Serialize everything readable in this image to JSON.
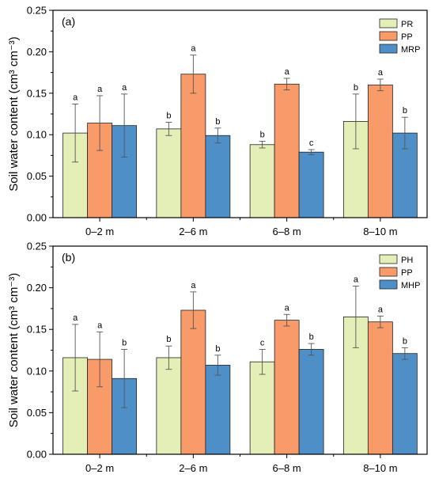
{
  "chart_data": [
    {
      "type": "bar",
      "panel_label": "(a)",
      "ylabel": "Soil water content (cm³ cm⁻³)",
      "ylim": [
        0,
        0.25
      ],
      "yticks": [
        "0.00",
        "0.05",
        "0.10",
        "0.15",
        "0.20",
        "0.25"
      ],
      "categories": [
        "0–2 m",
        "2–6 m",
        "6–8 m",
        "8–10 m"
      ],
      "series": [
        {
          "name": "PR",
          "color": "#e3efb6",
          "values": [
            0.102,
            0.107,
            0.088,
            0.116
          ],
          "errors": [
            0.035,
            0.008,
            0.004,
            0.033
          ],
          "letters": [
            "a",
            "b",
            "b",
            "b"
          ]
        },
        {
          "name": "PP",
          "color": "#f99a69",
          "values": [
            0.114,
            0.173,
            0.161,
            0.16
          ],
          "errors": [
            0.033,
            0.023,
            0.007,
            0.007
          ],
          "letters": [
            "a",
            "a",
            "a",
            "a"
          ]
        },
        {
          "name": "MRP",
          "color": "#4f8fc8",
          "values": [
            0.111,
            0.099,
            0.079,
            0.102
          ],
          "errors": [
            0.038,
            0.009,
            0.003,
            0.019
          ],
          "letters": [
            "a",
            "b",
            "c",
            "b"
          ]
        }
      ],
      "legend_position": "top-right"
    },
    {
      "type": "bar",
      "panel_label": "(b)",
      "ylabel": "Soil water content (cm³ cm⁻³)",
      "ylim": [
        0,
        0.25
      ],
      "yticks": [
        "0.00",
        "0.05",
        "0.10",
        "0.15",
        "0.20",
        "0.25"
      ],
      "categories": [
        "0–2 m",
        "2–6 m",
        "6–8 m",
        "8–10 m"
      ],
      "series": [
        {
          "name": "PH",
          "color": "#e3efb6",
          "values": [
            0.116,
            0.116,
            0.111,
            0.165
          ],
          "errors": [
            0.04,
            0.014,
            0.015,
            0.037
          ],
          "letters": [
            "a",
            "b",
            "c",
            "a"
          ]
        },
        {
          "name": "PP",
          "color": "#f99a69",
          "values": [
            0.114,
            0.173,
            0.161,
            0.159
          ],
          "errors": [
            0.033,
            0.022,
            0.007,
            0.007
          ],
          "letters": [
            "a",
            "a",
            "a",
            "a"
          ]
        },
        {
          "name": "MHP",
          "color": "#4f8fc8",
          "values": [
            0.091,
            0.107,
            0.126,
            0.121
          ],
          "errors": [
            0.035,
            0.012,
            0.007,
            0.007
          ],
          "letters": [
            "b",
            "b",
            "b",
            "b"
          ]
        }
      ],
      "legend_position": "top-right"
    }
  ]
}
